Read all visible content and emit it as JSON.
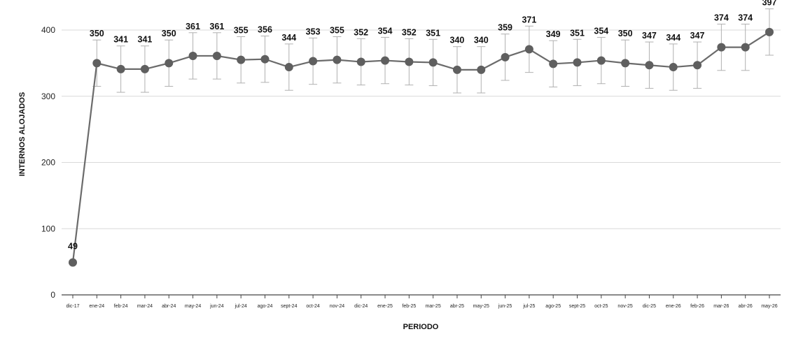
{
  "chart_data": {
    "type": "line",
    "xlabel": "PERIODO",
    "ylabel": "INTERNOS ALOJADOS",
    "ylim": [
      0,
      420
    ],
    "yticks": [
      0,
      100,
      200,
      300,
      400
    ],
    "grid": true,
    "error_bars": true,
    "error_bar_range": 35,
    "colors": {
      "line": "#6b6b6b",
      "marker": "#5f5f5f",
      "error": "#b0b0b0",
      "grid": "#d9d9d9",
      "axis": "#444444"
    },
    "categories": [
      "dic-17",
      "ene-24",
      "feb-24",
      "mar-24",
      "abr-24",
      "may-24",
      "jun-24",
      "jul-24",
      "ago-24",
      "sept-24",
      "oct-24",
      "nov-24",
      "dic-24",
      "ene-25",
      "feb-25",
      "mar-25",
      "abr-25",
      "may-25",
      "jun-25",
      "jul-25",
      "ago-25",
      "sept-25",
      "oct-25",
      "nov-25",
      "dic-25",
      "ene-26",
      "feb-26",
      "mar-26",
      "abr-26",
      "may-26"
    ],
    "values": [
      49,
      350,
      341,
      341,
      350,
      361,
      361,
      355,
      356,
      344,
      353,
      355,
      352,
      354,
      352,
      351,
      340,
      340,
      359,
      371,
      349,
      351,
      354,
      350,
      347,
      344,
      347,
      374,
      374,
      397
    ]
  }
}
